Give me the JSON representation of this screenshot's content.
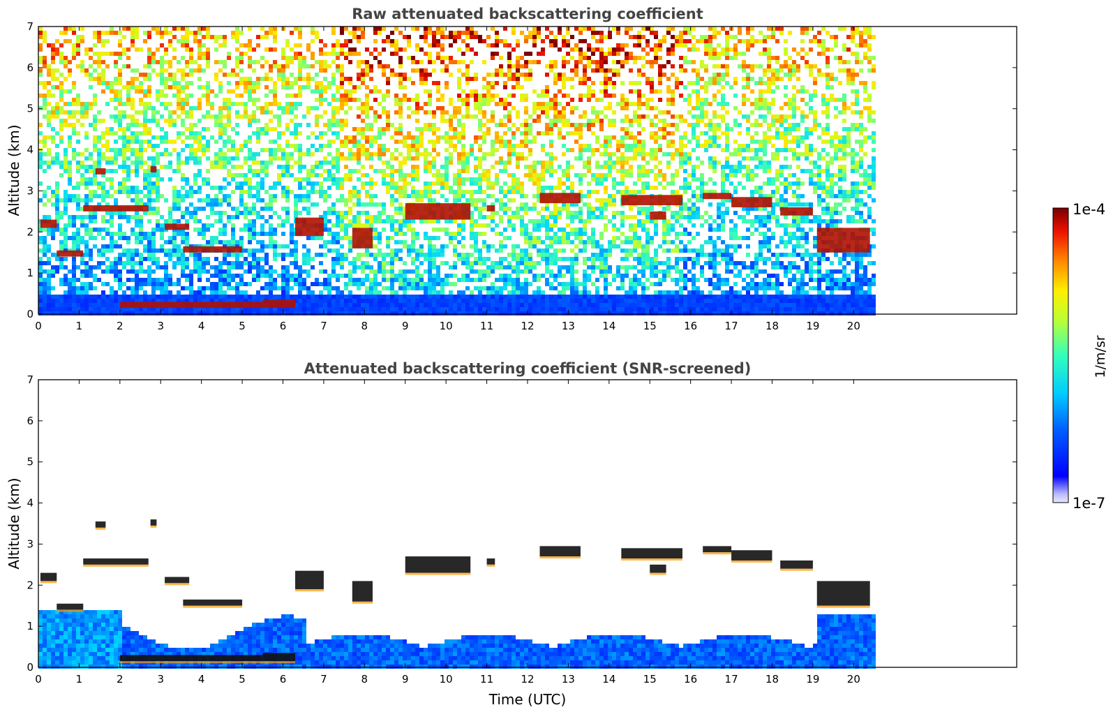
{
  "chart_data": [
    {
      "type": "heatmap",
      "title": "Raw attenuated backscattering coefficient",
      "ylabel": "Altitude (km)",
      "xlabel": "",
      "xlim": [
        0,
        24
      ],
      "ylim": [
        0,
        7
      ],
      "xticks": [
        0,
        1,
        2,
        3,
        4,
        5,
        6,
        7,
        8,
        9,
        10,
        11,
        12,
        13,
        14,
        15,
        16,
        17,
        18,
        19,
        20
      ],
      "yticks": [
        0,
        1,
        2,
        3,
        4,
        5,
        6,
        7
      ],
      "data_end_hour": 20.45,
      "cloud_layers": [
        {
          "x": [
            0.05,
            0.45
          ],
          "y": [
            2.1,
            2.3
          ]
        },
        {
          "x": [
            0.45,
            1.1
          ],
          "y": [
            1.4,
            1.55
          ]
        },
        {
          "x": [
            1.1,
            2.7
          ],
          "y": [
            2.5,
            2.65
          ]
        },
        {
          "x": [
            1.4,
            1.65
          ],
          "y": [
            3.4,
            3.55
          ]
        },
        {
          "x": [
            2.75,
            2.9
          ],
          "y": [
            3.45,
            3.6
          ]
        },
        {
          "x": [
            3.1,
            3.7
          ],
          "y": [
            2.05,
            2.2
          ]
        },
        {
          "x": [
            3.55,
            5.0
          ],
          "y": [
            1.5,
            1.65
          ]
        },
        {
          "x": [
            2.0,
            5.5
          ],
          "y": [
            0.15,
            0.3
          ]
        },
        {
          "x": [
            5.5,
            6.3
          ],
          "y": [
            0.15,
            0.35
          ]
        },
        {
          "x": [
            6.3,
            7.0
          ],
          "y": [
            1.9,
            2.35
          ]
        },
        {
          "x": [
            7.7,
            8.2
          ],
          "y": [
            1.6,
            2.1
          ]
        },
        {
          "x": [
            9.0,
            10.6
          ],
          "y": [
            2.3,
            2.7
          ]
        },
        {
          "x": [
            11.0,
            11.2
          ],
          "y": [
            2.5,
            2.65
          ]
        },
        {
          "x": [
            12.3,
            13.3
          ],
          "y": [
            2.7,
            2.95
          ]
        },
        {
          "x": [
            14.3,
            15.8
          ],
          "y": [
            2.65,
            2.9
          ]
        },
        {
          "x": [
            15.0,
            15.4
          ],
          "y": [
            2.3,
            2.5
          ]
        },
        {
          "x": [
            16.3,
            17.0
          ],
          "y": [
            2.8,
            2.95
          ]
        },
        {
          "x": [
            17.0,
            18.0
          ],
          "y": [
            2.6,
            2.85
          ]
        },
        {
          "x": [
            18.2,
            19.0
          ],
          "y": [
            2.4,
            2.6
          ]
        },
        {
          "x": [
            19.1,
            20.4
          ],
          "y": [
            1.5,
            2.1
          ]
        }
      ]
    },
    {
      "type": "heatmap",
      "title": "Attenuated backscattering coefficient (SNR-screened)",
      "ylabel": "Altitude (km)",
      "xlabel": "Time (UTC)",
      "xlim": [
        0,
        24
      ],
      "ylim": [
        0,
        7
      ],
      "xticks": [
        0,
        1,
        2,
        3,
        4,
        5,
        6,
        7,
        8,
        9,
        10,
        11,
        12,
        13,
        14,
        15,
        16,
        17,
        18,
        19,
        20
      ],
      "yticks": [
        0,
        1,
        2,
        3,
        4,
        5,
        6,
        7
      ],
      "data_end_hour": 20.45
    }
  ],
  "colorbar": {
    "label": "1/m/sr",
    "max_label": "1e-4",
    "min_label": "1e-7",
    "colormap": "jet",
    "scale": "log",
    "range": [
      1e-07,
      0.0001
    ]
  }
}
